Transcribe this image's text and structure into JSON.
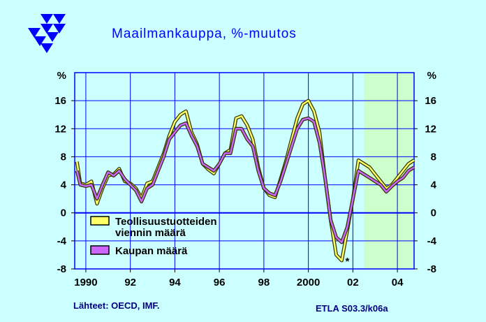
{
  "header": {
    "title": "Maailmankauppa,  %-muutos"
  },
  "footer": {
    "source": "Lähteet:   OECD, IMF.",
    "code": "ETLA S03.3/k06a"
  },
  "colors": {
    "background": "#ccffff",
    "plot_area": "#ccffff",
    "forecast_area": "#ccffcc",
    "grid": "#0000ff",
    "series_industrial": "#ffff66",
    "series_trade": "#cc66ff",
    "logo": "#0000ff"
  },
  "chart_data": {
    "type": "line",
    "title": "Maailmankauppa,  %-muutos",
    "ylabel_left": "%",
    "ylabel_right": "%",
    "ylim": [
      -8,
      20
    ],
    "yticks": [
      -8,
      -4,
      0,
      4,
      8,
      12,
      16
    ],
    "xlim": [
      1989.5,
      2004.75
    ],
    "xticks": [
      {
        "x": 1990,
        "label": "1990"
      },
      {
        "x": 1992,
        "label": "92"
      },
      {
        "x": 1994,
        "label": "94"
      },
      {
        "x": 1996,
        "label": "96"
      },
      {
        "x": 1998,
        "label": "98"
      },
      {
        "x": 2000,
        "label": "2000"
      },
      {
        "x": 2002,
        "label": "02"
      },
      {
        "x": 2004,
        "label": "04"
      }
    ],
    "grid": true,
    "forecast_start": 2002.5,
    "marker": "*",
    "legend": {
      "placement": "bottom-left"
    },
    "series": [
      {
        "name": "Teollisuustuotteiden viennin määrä",
        "x": [
          1989.6,
          1989.75,
          1990.0,
          1990.25,
          1990.5,
          1990.75,
          1991.0,
          1991.25,
          1991.5,
          1991.75,
          1992.0,
          1992.25,
          1992.5,
          1992.75,
          1993.0,
          1993.25,
          1993.5,
          1993.75,
          1994.0,
          1994.25,
          1994.5,
          1994.75,
          1995.0,
          1995.25,
          1995.5,
          1995.75,
          1996.0,
          1996.25,
          1996.5,
          1996.75,
          1997.0,
          1997.25,
          1997.5,
          1997.75,
          1998.0,
          1998.25,
          1998.5,
          1998.75,
          1999.0,
          1999.25,
          1999.5,
          1999.75,
          2000.0,
          2000.25,
          2000.5,
          2000.75,
          2001.0,
          2001.25,
          2001.5,
          2001.75,
          2002.0,
          2002.25,
          2002.5,
          2002.75,
          2003.0,
          2003.25,
          2003.5,
          2003.75,
          2004.0,
          2004.25,
          2004.5,
          2004.75
        ],
        "values": [
          7.3,
          4.2,
          4.0,
          4.5,
          1.3,
          3.5,
          5.3,
          5.5,
          6.3,
          4.5,
          4.2,
          3.5,
          2.1,
          4.2,
          4.5,
          6.5,
          8.5,
          11.0,
          13.0,
          14.0,
          14.5,
          11.5,
          9.8,
          7.0,
          6.2,
          5.6,
          7.0,
          8.5,
          9.0,
          13.5,
          13.8,
          12.5,
          10.5,
          6.5,
          3.5,
          2.5,
          2.2,
          4.8,
          7.5,
          10.5,
          13.5,
          15.5,
          16.0,
          14.5,
          11.5,
          5.0,
          -1.0,
          -6.0,
          -6.8,
          -2.5,
          2.0,
          7.5,
          7.0,
          6.5,
          5.5,
          4.5,
          3.5,
          4.0,
          5.0,
          6.0,
          7.0,
          7.5
        ]
      },
      {
        "name": "Kaupan määrä",
        "x": [
          1989.6,
          1989.75,
          1990.0,
          1990.25,
          1990.5,
          1990.75,
          1991.0,
          1991.25,
          1991.5,
          1991.75,
          1992.0,
          1992.25,
          1992.5,
          1992.75,
          1993.0,
          1993.25,
          1993.5,
          1993.75,
          1994.0,
          1994.25,
          1994.5,
          1994.75,
          1995.0,
          1995.25,
          1995.5,
          1995.75,
          1996.0,
          1996.25,
          1996.5,
          1996.75,
          1997.0,
          1997.25,
          1997.5,
          1997.75,
          1998.0,
          1998.25,
          1998.5,
          1998.75,
          1999.0,
          1999.25,
          1999.5,
          1999.75,
          2000.0,
          2000.25,
          2000.5,
          2000.75,
          2001.0,
          2001.25,
          2001.5,
          2001.75,
          2002.0,
          2002.25,
          2002.5,
          2002.75,
          2003.0,
          2003.25,
          2003.5,
          2003.75,
          2004.0,
          2004.25,
          2004.5,
          2004.75
        ],
        "values": [
          6.0,
          4.0,
          3.8,
          4.0,
          2.0,
          4.0,
          5.8,
          5.3,
          6.0,
          4.8,
          4.0,
          3.2,
          1.6,
          3.5,
          4.0,
          6.0,
          8.0,
          10.5,
          11.5,
          12.5,
          12.8,
          11.0,
          9.5,
          7.0,
          6.5,
          6.0,
          7.0,
          8.5,
          8.5,
          12.0,
          12.0,
          10.5,
          9.5,
          6.0,
          3.5,
          2.8,
          2.5,
          4.5,
          7.0,
          9.5,
          12.0,
          13.3,
          13.5,
          13.0,
          10.0,
          5.0,
          -1.0,
          -3.5,
          -4.2,
          -2.0,
          2.0,
          6.0,
          5.5,
          5.0,
          4.5,
          4.0,
          3.0,
          3.8,
          4.5,
          5.0,
          6.0,
          6.5
        ]
      }
    ]
  }
}
